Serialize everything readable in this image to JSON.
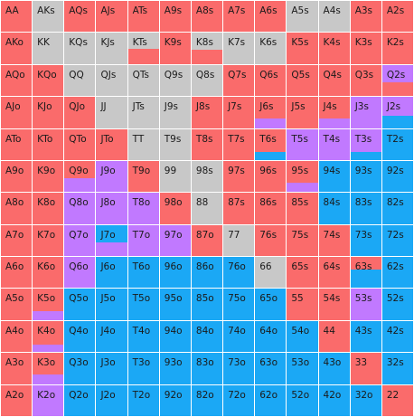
{
  "colors": {
    "R": "#fa6b6b",
    "G": "#c8c8c8",
    "P": "#c179ff",
    "B": "#1ba8f5"
  },
  "cells": [
    [
      [
        "AA",
        [
          [
            "R",
            1
          ]
        ]
      ],
      [
        "AKs",
        [
          [
            "G",
            1
          ]
        ]
      ],
      [
        "AQs",
        [
          [
            "R",
            1
          ]
        ]
      ],
      [
        "AJs",
        [
          [
            "R",
            1
          ]
        ]
      ],
      [
        "ATs",
        [
          [
            "R",
            1
          ]
        ]
      ],
      [
        "A9s",
        [
          [
            "R",
            1
          ]
        ]
      ],
      [
        "A8s",
        [
          [
            "R",
            1
          ]
        ]
      ],
      [
        "A7s",
        [
          [
            "R",
            1
          ]
        ]
      ],
      [
        "A6s",
        [
          [
            "R",
            1
          ]
        ]
      ],
      [
        "A5s",
        [
          [
            "G",
            1
          ]
        ]
      ],
      [
        "A4s",
        [
          [
            "G",
            1
          ]
        ]
      ],
      [
        "A3s",
        [
          [
            "R",
            1
          ]
        ]
      ],
      [
        "A2s",
        [
          [
            "R",
            1
          ]
        ]
      ]
    ],
    [
      [
        "AKo",
        [
          [
            "R",
            1
          ]
        ]
      ],
      [
        "KK",
        [
          [
            "G",
            1
          ]
        ]
      ],
      [
        "KQs",
        [
          [
            "G",
            1
          ]
        ]
      ],
      [
        "KJs",
        [
          [
            "G",
            1
          ]
        ]
      ],
      [
        "KTs",
        [
          [
            "G",
            0.5
          ],
          [
            "R",
            0.5
          ]
        ]
      ],
      [
        "K9s",
        [
          [
            "R",
            1
          ]
        ]
      ],
      [
        "K8s",
        [
          [
            "G",
            0.55
          ],
          [
            "R",
            0.45
          ]
        ]
      ],
      [
        "K7s",
        [
          [
            "G",
            1
          ]
        ]
      ],
      [
        "K6s",
        [
          [
            "G",
            1
          ]
        ]
      ],
      [
        "K5s",
        [
          [
            "R",
            1
          ]
        ]
      ],
      [
        "K4s",
        [
          [
            "R",
            1
          ]
        ]
      ],
      [
        "K3s",
        [
          [
            "R",
            1
          ]
        ]
      ],
      [
        "K2s",
        [
          [
            "R",
            1
          ]
        ]
      ]
    ],
    [
      [
        "AQo",
        [
          [
            "R",
            1
          ]
        ]
      ],
      [
        "KQo",
        [
          [
            "R",
            1
          ]
        ]
      ],
      [
        "QQ",
        [
          [
            "G",
            1
          ]
        ]
      ],
      [
        "QJs",
        [
          [
            "G",
            1
          ]
        ]
      ],
      [
        "QTs",
        [
          [
            "G",
            1
          ]
        ]
      ],
      [
        "Q9s",
        [
          [
            "G",
            1
          ]
        ]
      ],
      [
        "Q8s",
        [
          [
            "G",
            1
          ]
        ]
      ],
      [
        "Q7s",
        [
          [
            "R",
            1
          ]
        ]
      ],
      [
        "Q6s",
        [
          [
            "R",
            1
          ]
        ]
      ],
      [
        "Q5s",
        [
          [
            "R",
            1
          ]
        ]
      ],
      [
        "Q4s",
        [
          [
            "R",
            1
          ]
        ]
      ],
      [
        "Q3s",
        [
          [
            "R",
            1
          ]
        ]
      ],
      [
        "Q2s",
        [
          [
            "P",
            0.55
          ],
          [
            "R",
            0.45
          ]
        ]
      ]
    ],
    [
      [
        "AJo",
        [
          [
            "R",
            1
          ]
        ]
      ],
      [
        "KJo",
        [
          [
            "R",
            1
          ]
        ]
      ],
      [
        "QJo",
        [
          [
            "R",
            1
          ]
        ]
      ],
      [
        "JJ",
        [
          [
            "G",
            1
          ]
        ]
      ],
      [
        "JTs",
        [
          [
            "G",
            1
          ]
        ]
      ],
      [
        "J9s",
        [
          [
            "G",
            1
          ]
        ]
      ],
      [
        "J8s",
        [
          [
            "R",
            1
          ]
        ]
      ],
      [
        "J7s",
        [
          [
            "R",
            1
          ]
        ]
      ],
      [
        "J6s",
        [
          [
            "R",
            0.7
          ],
          [
            "P",
            0.3
          ]
        ]
      ],
      [
        "J5s",
        [
          [
            "R",
            1
          ]
        ]
      ],
      [
        "J4s",
        [
          [
            "R",
            0.7
          ],
          [
            "P",
            0.3
          ]
        ]
      ],
      [
        "J3s",
        [
          [
            "P",
            1
          ]
        ]
      ],
      [
        "J2s",
        [
          [
            "P",
            0.6
          ],
          [
            "B",
            0.4
          ]
        ]
      ]
    ],
    [
      [
        "ATo",
        [
          [
            "R",
            1
          ]
        ]
      ],
      [
        "KTo",
        [
          [
            "R",
            1
          ]
        ]
      ],
      [
        "QTo",
        [
          [
            "R",
            1
          ]
        ]
      ],
      [
        "JTo",
        [
          [
            "R",
            1
          ]
        ]
      ],
      [
        "TT",
        [
          [
            "G",
            1
          ]
        ]
      ],
      [
        "T9s",
        [
          [
            "G",
            1
          ]
        ]
      ],
      [
        "T8s",
        [
          [
            "R",
            1
          ]
        ]
      ],
      [
        "T7s",
        [
          [
            "R",
            1
          ]
        ]
      ],
      [
        "T6s",
        [
          [
            "R",
            0.75
          ],
          [
            "B",
            0.25
          ]
        ]
      ],
      [
        "T5s",
        [
          [
            "P",
            1
          ]
        ]
      ],
      [
        "T4s",
        [
          [
            "P",
            1
          ]
        ]
      ],
      [
        "T3s",
        [
          [
            "P",
            0.75
          ],
          [
            "B",
            0.25
          ]
        ]
      ],
      [
        "T2s",
        [
          [
            "B",
            1
          ]
        ]
      ]
    ],
    [
      [
        "A9o",
        [
          [
            "R",
            1
          ]
        ]
      ],
      [
        "K9o",
        [
          [
            "R",
            1
          ]
        ]
      ],
      [
        "Q9o",
        [
          [
            "R",
            0.55
          ],
          [
            "P",
            0.45
          ]
        ]
      ],
      [
        "J9o",
        [
          [
            "P",
            1
          ]
        ]
      ],
      [
        "T9o",
        [
          [
            "R",
            1
          ]
        ]
      ],
      [
        "99",
        [
          [
            "G",
            1
          ]
        ]
      ],
      [
        "98s",
        [
          [
            "G",
            1
          ]
        ]
      ],
      [
        "97s",
        [
          [
            "R",
            1
          ]
        ]
      ],
      [
        "96s",
        [
          [
            "R",
            1
          ]
        ]
      ],
      [
        "95s",
        [
          [
            "R",
            0.7
          ],
          [
            "P",
            0.3
          ]
        ]
      ],
      [
        "94s",
        [
          [
            "B",
            1
          ]
        ]
      ],
      [
        "93s",
        [
          [
            "B",
            1
          ]
        ]
      ],
      [
        "92s",
        [
          [
            "B",
            1
          ]
        ]
      ]
    ],
    [
      [
        "A8o",
        [
          [
            "R",
            1
          ]
        ]
      ],
      [
        "K8o",
        [
          [
            "R",
            1
          ]
        ]
      ],
      [
        "Q8o",
        [
          [
            "P",
            1
          ]
        ]
      ],
      [
        "J8o",
        [
          [
            "P",
            1
          ]
        ]
      ],
      [
        "T8o",
        [
          [
            "P",
            1
          ]
        ]
      ],
      [
        "98o",
        [
          [
            "R",
            1
          ]
        ]
      ],
      [
        "88",
        [
          [
            "G",
            1
          ]
        ]
      ],
      [
        "87s",
        [
          [
            "R",
            1
          ]
        ]
      ],
      [
        "86s",
        [
          [
            "R",
            1
          ]
        ]
      ],
      [
        "85s",
        [
          [
            "R",
            1
          ]
        ]
      ],
      [
        "84s",
        [
          [
            "B",
            1
          ]
        ]
      ],
      [
        "83s",
        [
          [
            "B",
            1
          ]
        ]
      ],
      [
        "82s",
        [
          [
            "B",
            1
          ]
        ]
      ]
    ],
    [
      [
        "A7o",
        [
          [
            "R",
            1
          ]
        ]
      ],
      [
        "K7o",
        [
          [
            "R",
            1
          ]
        ]
      ],
      [
        "Q7o",
        [
          [
            "P",
            1
          ]
        ]
      ],
      [
        "J7o",
        [
          [
            "B",
            0.55
          ],
          [
            "P",
            0.45
          ]
        ]
      ],
      [
        "T7o",
        [
          [
            "P",
            1
          ]
        ]
      ],
      [
        "97o",
        [
          [
            "P",
            1
          ]
        ]
      ],
      [
        "87o",
        [
          [
            "R",
            1
          ]
        ]
      ],
      [
        "77",
        [
          [
            "G",
            1
          ]
        ]
      ],
      [
        "76s",
        [
          [
            "R",
            1
          ]
        ]
      ],
      [
        "75s",
        [
          [
            "R",
            1
          ]
        ]
      ],
      [
        "74s",
        [
          [
            "R",
            1
          ]
        ]
      ],
      [
        "73s",
        [
          [
            "B",
            1
          ]
        ]
      ],
      [
        "72s",
        [
          [
            "B",
            1
          ]
        ]
      ]
    ],
    [
      [
        "A6o",
        [
          [
            "R",
            1
          ]
        ]
      ],
      [
        "K6o",
        [
          [
            "R",
            1
          ]
        ]
      ],
      [
        "Q6o",
        [
          [
            "P",
            1
          ]
        ]
      ],
      [
        "J6o",
        [
          [
            "B",
            1
          ]
        ]
      ],
      [
        "T6o",
        [
          [
            "B",
            1
          ]
        ]
      ],
      [
        "96o",
        [
          [
            "B",
            1
          ]
        ]
      ],
      [
        "86o",
        [
          [
            "B",
            1
          ]
        ]
      ],
      [
        "76o",
        [
          [
            "B",
            1
          ]
        ]
      ],
      [
        "66",
        [
          [
            "G",
            1
          ]
        ]
      ],
      [
        "65s",
        [
          [
            "R",
            1
          ]
        ]
      ],
      [
        "64s",
        [
          [
            "R",
            1
          ]
        ]
      ],
      [
        "63s",
        [
          [
            "R",
            0.4
          ],
          [
            "B",
            0.6
          ]
        ]
      ],
      [
        "62s",
        [
          [
            "B",
            1
          ]
        ]
      ]
    ],
    [
      [
        "A5o",
        [
          [
            "R",
            1
          ]
        ]
      ],
      [
        "K5o",
        [
          [
            "R",
            0.7
          ],
          [
            "P",
            0.3
          ]
        ]
      ],
      [
        "Q5o",
        [
          [
            "B",
            1
          ]
        ]
      ],
      [
        "J5o",
        [
          [
            "B",
            1
          ]
        ]
      ],
      [
        "T5o",
        [
          [
            "B",
            1
          ]
        ]
      ],
      [
        "95o",
        [
          [
            "B",
            1
          ]
        ]
      ],
      [
        "85o",
        [
          [
            "B",
            1
          ]
        ]
      ],
      [
        "75o",
        [
          [
            "B",
            1
          ]
        ]
      ],
      [
        "65o",
        [
          [
            "B",
            1
          ]
        ]
      ],
      [
        "55",
        [
          [
            "R",
            1
          ]
        ]
      ],
      [
        "54s",
        [
          [
            "R",
            1
          ]
        ]
      ],
      [
        "53s",
        [
          [
            "P",
            1
          ]
        ]
      ],
      [
        "52s",
        [
          [
            "B",
            1
          ]
        ]
      ]
    ],
    [
      [
        "A4o",
        [
          [
            "R",
            1
          ]
        ]
      ],
      [
        "K4o",
        [
          [
            "R",
            0.75
          ],
          [
            "P",
            0.25
          ]
        ]
      ],
      [
        "Q4o",
        [
          [
            "B",
            1
          ]
        ]
      ],
      [
        "J4o",
        [
          [
            "B",
            1
          ]
        ]
      ],
      [
        "T4o",
        [
          [
            "B",
            1
          ]
        ]
      ],
      [
        "94o",
        [
          [
            "B",
            1
          ]
        ]
      ],
      [
        "84o",
        [
          [
            "B",
            1
          ]
        ]
      ],
      [
        "74o",
        [
          [
            "B",
            1
          ]
        ]
      ],
      [
        "64o",
        [
          [
            "B",
            1
          ]
        ]
      ],
      [
        "54o",
        [
          [
            "B",
            1
          ]
        ]
      ],
      [
        "44",
        [
          [
            "R",
            1
          ]
        ]
      ],
      [
        "43s",
        [
          [
            "B",
            1
          ]
        ]
      ],
      [
        "42s",
        [
          [
            "B",
            1
          ]
        ]
      ]
    ],
    [
      [
        "A3o",
        [
          [
            "R",
            1
          ]
        ]
      ],
      [
        "K3o",
        [
          [
            "R",
            0.7
          ],
          [
            "P",
            0.3
          ]
        ]
      ],
      [
        "Q3o",
        [
          [
            "B",
            1
          ]
        ]
      ],
      [
        "J3o",
        [
          [
            "B",
            1
          ]
        ]
      ],
      [
        "T3o",
        [
          [
            "B",
            1
          ]
        ]
      ],
      [
        "93o",
        [
          [
            "B",
            1
          ]
        ]
      ],
      [
        "83o",
        [
          [
            "B",
            1
          ]
        ]
      ],
      [
        "73o",
        [
          [
            "B",
            1
          ]
        ]
      ],
      [
        "63o",
        [
          [
            "B",
            1
          ]
        ]
      ],
      [
        "53o",
        [
          [
            "B",
            1
          ]
        ]
      ],
      [
        "43o",
        [
          [
            "B",
            1
          ]
        ]
      ],
      [
        "33",
        [
          [
            "R",
            1
          ]
        ]
      ],
      [
        "32s",
        [
          [
            "B",
            1
          ]
        ]
      ]
    ],
    [
      [
        "A2o",
        [
          [
            "R",
            1
          ]
        ]
      ],
      [
        "K2o",
        [
          [
            "P",
            1
          ]
        ]
      ],
      [
        "Q2o",
        [
          [
            "B",
            1
          ]
        ]
      ],
      [
        "J2o",
        [
          [
            "B",
            1
          ]
        ]
      ],
      [
        "T2o",
        [
          [
            "B",
            1
          ]
        ]
      ],
      [
        "92o",
        [
          [
            "B",
            1
          ]
        ]
      ],
      [
        "82o",
        [
          [
            "B",
            1
          ]
        ]
      ],
      [
        "72o",
        [
          [
            "B",
            1
          ]
        ]
      ],
      [
        "62o",
        [
          [
            "B",
            1
          ]
        ]
      ],
      [
        "52o",
        [
          [
            "B",
            1
          ]
        ]
      ],
      [
        "42o",
        [
          [
            "B",
            1
          ]
        ]
      ],
      [
        "32o",
        [
          [
            "B",
            1
          ]
        ]
      ],
      [
        "22",
        [
          [
            "R",
            1
          ]
        ]
      ]
    ]
  ]
}
